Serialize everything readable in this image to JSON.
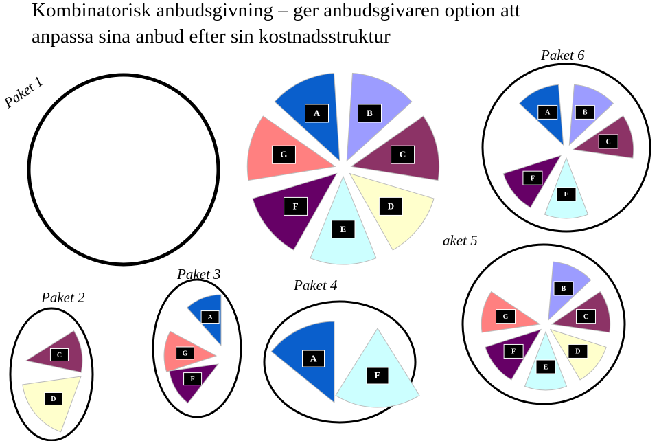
{
  "title": [
    "Kombinatorisk anbudsgivning – ger anbudsgivaren option att",
    "anpassa sina anbud efter sin kostnadsstruktur"
  ],
  "center_pie": {
    "segments": [
      "A",
      "B",
      "C",
      "D",
      "E",
      "F",
      "G"
    ]
  },
  "packages": [
    {
      "label": "Paket 1"
    },
    {
      "label": "Paket 2",
      "segments": [
        "C",
        "D"
      ]
    },
    {
      "label": "Paket 3",
      "segments": [
        "A",
        "G",
        "F"
      ]
    },
    {
      "label": "Paket 4",
      "segments": [
        "A",
        "E"
      ]
    },
    {
      "label": "aket 5",
      "segments": [
        "B",
        "C",
        "D",
        "E",
        "F",
        "G"
      ]
    },
    {
      "label": "Paket 6",
      "segments": [
        "A",
        "B",
        "C",
        "E",
        "F"
      ]
    }
  ]
}
